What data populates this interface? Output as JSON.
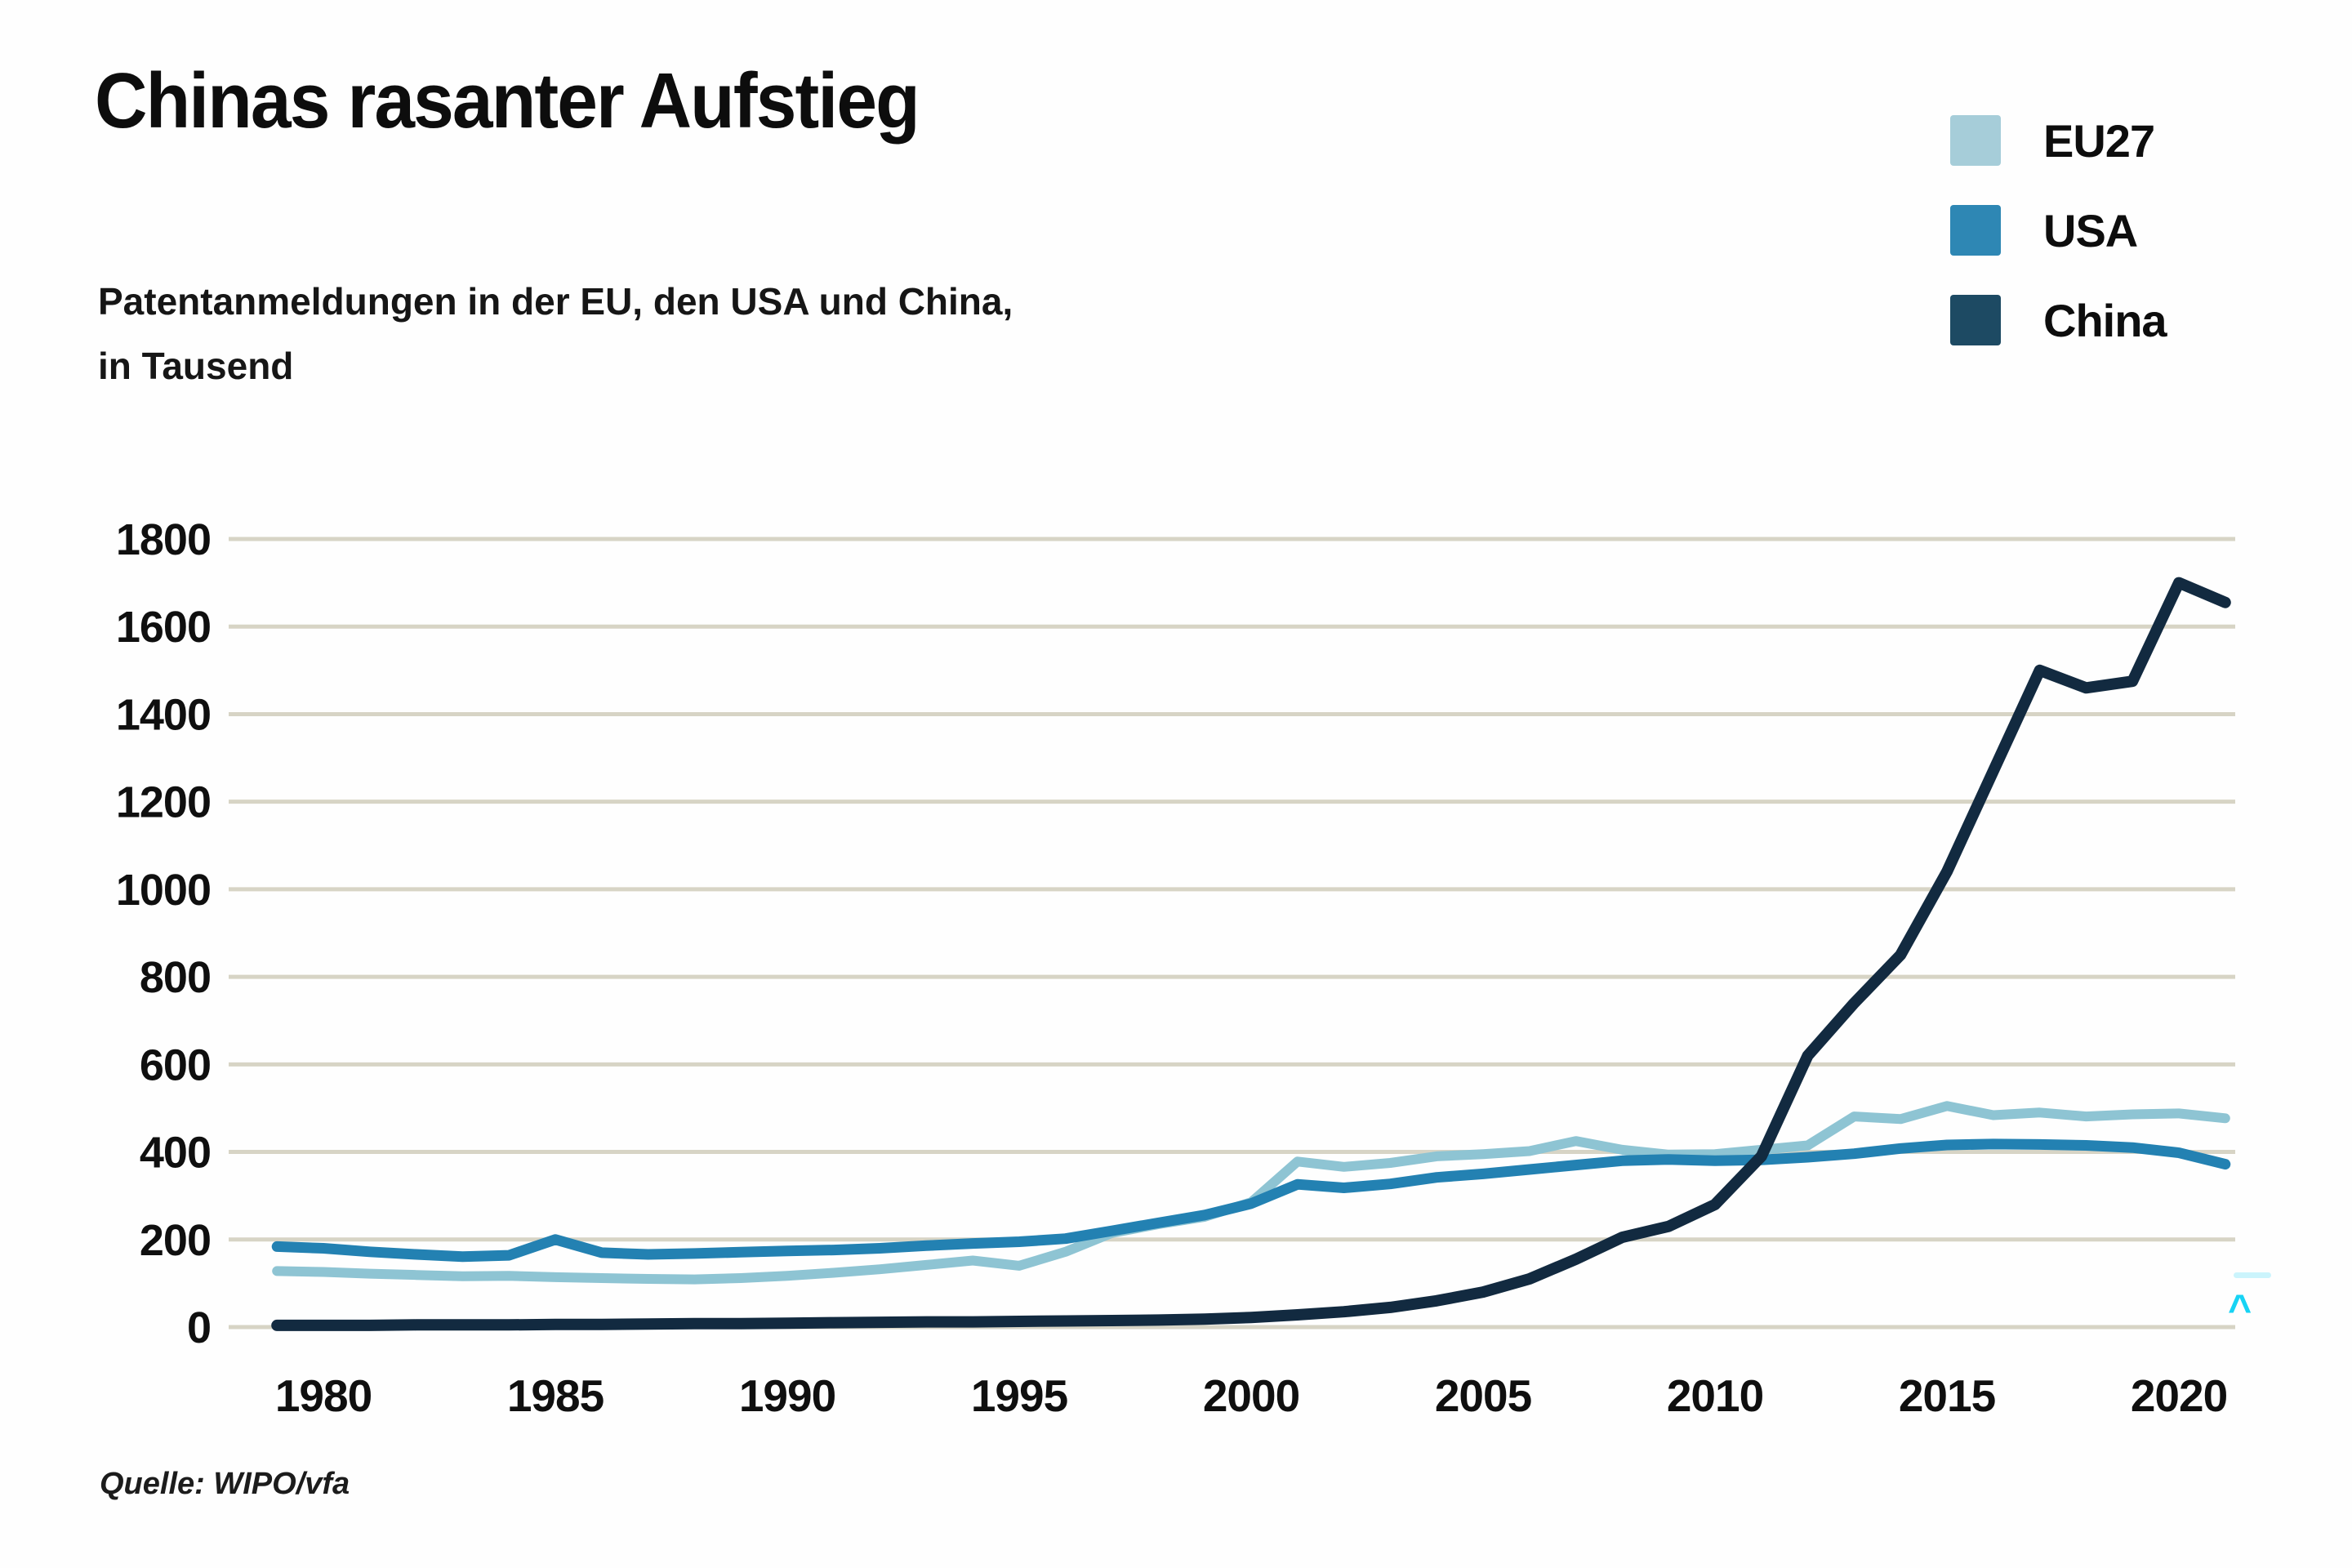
{
  "header": {
    "title": "Chinas rasanter Aufstieg",
    "subtitle_line1": "Patentanmeldungen in der EU, den USA und China,",
    "subtitle_line2": "in Tausend"
  },
  "legend": {
    "position": "top-right",
    "items": [
      {
        "label": "EU27",
        "swatch_color": "#a6cdd9"
      },
      {
        "label": "USA",
        "swatch_color": "#2e87b4"
      },
      {
        "label": "China",
        "swatch_color": "#1d4a63"
      }
    ]
  },
  "footer": {
    "source": "Quelle: WIPO/vfa"
  },
  "artifact": {
    "caret_glyph": "^"
  },
  "colors": {
    "background": "#fefefe",
    "gridline": "#d7d4c5",
    "text": "#0d0d0d",
    "eu27_line": "#8ec4d3",
    "usa_line": "#2381b2",
    "china_line": "#122a40",
    "artifact_cyan": "#17d3f4"
  },
  "chart_data": {
    "type": "line",
    "title": "Chinas rasanter Aufstieg",
    "subtitle": "Patentanmeldungen in der EU, den USA und China, in Tausend",
    "xlabel": "",
    "ylabel": "Patentanmeldungen in Tausend",
    "grid": "horizontal",
    "legend_position": "top-right",
    "ylim": [
      0,
      1800
    ],
    "y_ticks": [
      0,
      200,
      400,
      600,
      800,
      1000,
      1200,
      1400,
      1600,
      1800
    ],
    "x_ticks": [
      1980,
      1985,
      1990,
      1995,
      2000,
      2005,
      2010,
      2015,
      2020
    ],
    "x": [
      1979,
      1980,
      1981,
      1982,
      1983,
      1984,
      1985,
      1986,
      1987,
      1988,
      1989,
      1990,
      1991,
      1992,
      1993,
      1994,
      1995,
      1996,
      1997,
      1998,
      1999,
      2000,
      2001,
      2002,
      2003,
      2004,
      2005,
      2006,
      2007,
      2008,
      2009,
      2010,
      2011,
      2012,
      2013,
      2014,
      2015,
      2016,
      2017,
      2018,
      2019,
      2020,
      2021
    ],
    "series": [
      {
        "name": "EU27",
        "color": "#8ec4d3",
        "stroke_width": 12,
        "values": [
          128,
          126,
          122,
          119,
          116,
          117,
          114,
          112,
          110,
          109,
          112,
          117,
          124,
          132,
          142,
          152,
          140,
          172,
          215,
          235,
          252,
          285,
          378,
          366,
          375,
          390,
          395,
          402,
          425,
          405,
          394,
          395,
          405,
          415,
          481,
          475,
          505,
          484,
          490,
          481,
          486,
          488,
          477
        ]
      },
      {
        "name": "USA",
        "color": "#2381b2",
        "stroke_width": 13,
        "values": [
          184,
          180,
          172,
          166,
          161,
          164,
          200,
          170,
          166,
          168,
          171,
          174,
          176,
          180,
          186,
          191,
          195,
          202,
          220,
          238,
          256,
          282,
          326,
          318,
          327,
          342,
          350,
          360,
          370,
          380,
          383,
          380,
          382,
          388,
          396,
          408,
          416,
          418,
          417,
          415,
          410,
          398,
          372
        ]
      },
      {
        "name": "China",
        "color": "#122a40",
        "stroke_width": 14,
        "values": [
          4,
          4,
          4,
          5,
          5,
          5,
          6,
          6,
          7,
          8,
          8,
          9,
          10,
          11,
          12,
          12,
          13,
          14,
          15,
          16,
          18,
          22,
          28,
          35,
          45,
          60,
          80,
          110,
          155,
          205,
          230,
          280,
          390,
          620,
          740,
          850,
          1040,
          1270,
          1500,
          1460,
          1475,
          1700,
          1655
        ]
      }
    ]
  }
}
